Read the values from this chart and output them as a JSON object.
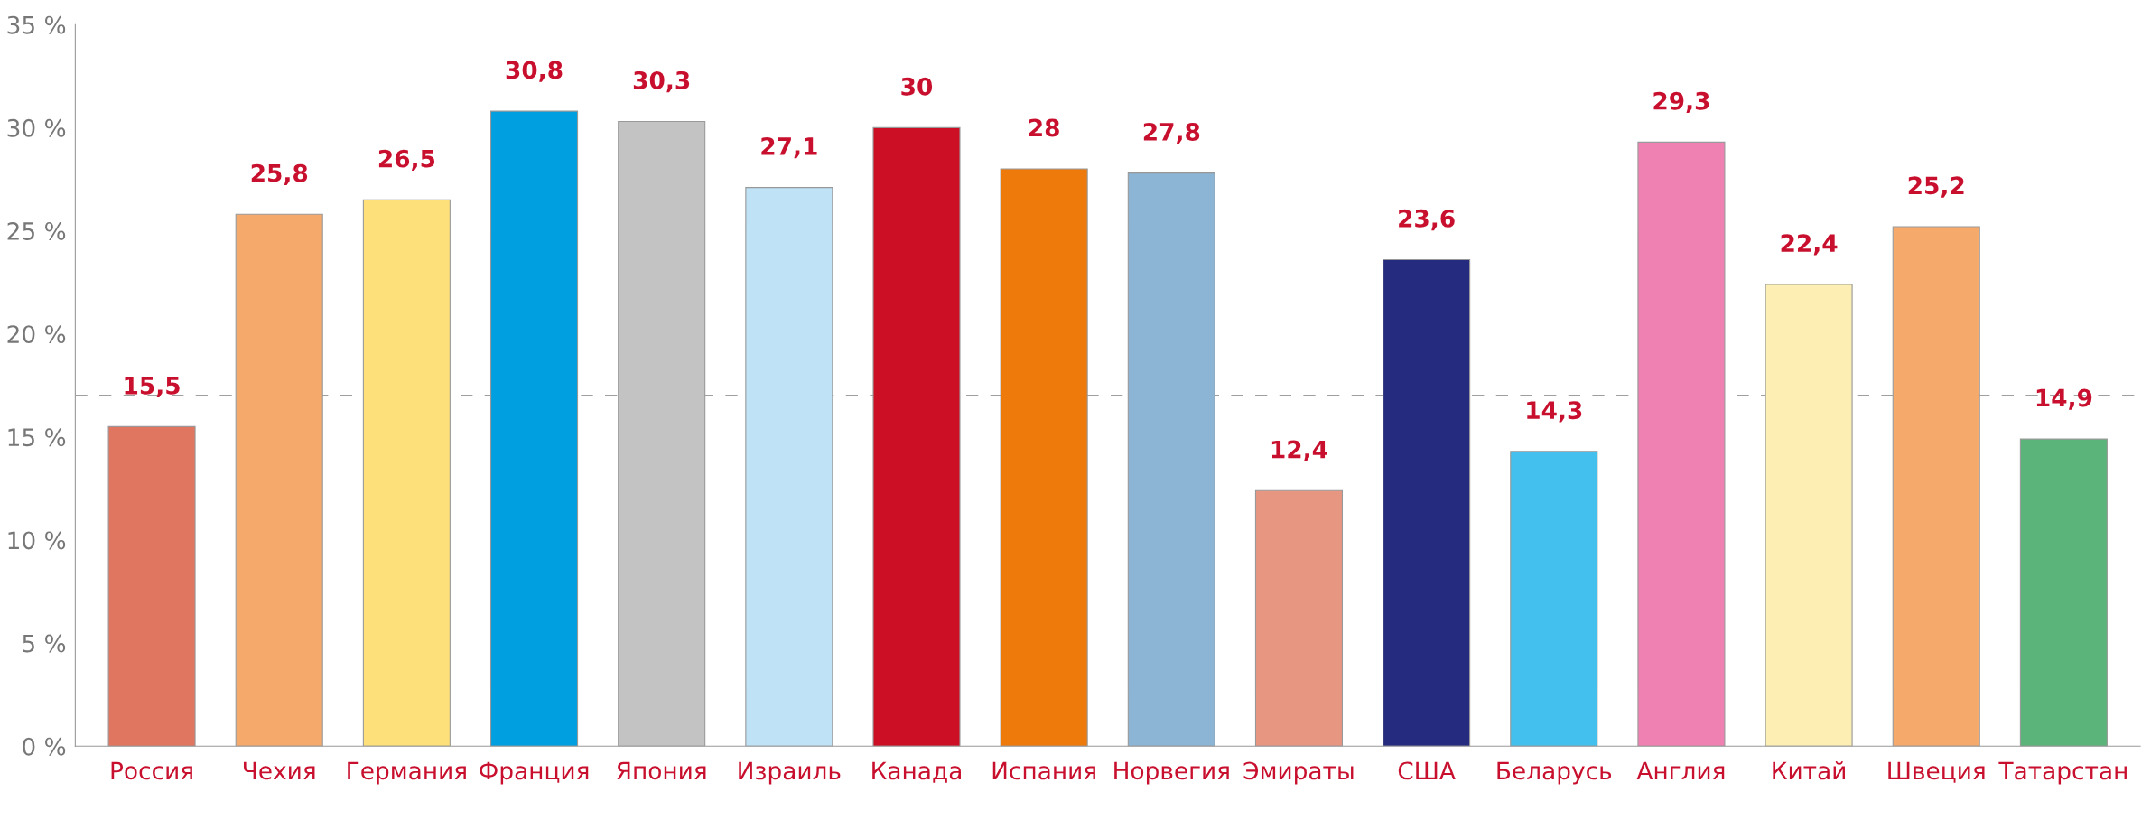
{
  "chart_data": {
    "type": "bar",
    "categories": [
      "Россия",
      "Чехия",
      "Германия",
      "Франция",
      "Япония",
      "Израиль",
      "Канада",
      "Испания",
      "Норвегия",
      "Эмираты",
      "США",
      "Беларусь",
      "Англия",
      "Китай",
      "Швеция",
      "Татарстан"
    ],
    "values": [
      15.5,
      25.8,
      26.5,
      30.8,
      30.3,
      27.1,
      30,
      28,
      27.8,
      12.4,
      23.6,
      14.3,
      29.3,
      22.4,
      25.2,
      14.9
    ],
    "value_labels": [
      "15,5",
      "25,8",
      "26,5",
      "30,8",
      "30,3",
      "27,1",
      "30",
      "28",
      "27,8",
      "12,4",
      "23,6",
      "14,3",
      "29,3",
      "22,4",
      "25,2",
      "14,9"
    ],
    "colors": [
      "#e07560",
      "#f5a96a",
      "#fde07a",
      "#009fe0",
      "#c3c3c3",
      "#bfe2f7",
      "#cc0f24",
      "#ee7a0c",
      "#8cb4d5",
      "#e79682",
      "#252b7f",
      "#43c0ed",
      "#ee80b2",
      "#fdeeb4",
      "#f5a96a",
      "#5bb57a"
    ],
    "ylim": [
      0,
      35
    ],
    "yticks": [
      {
        "value": 0,
        "label": "0 %"
      },
      {
        "value": 5,
        "label": "5 %"
      },
      {
        "value": 10,
        "label": "10 %"
      },
      {
        "value": 15,
        "label": "15 %"
      },
      {
        "value": 20,
        "label": "20 %"
      },
      {
        "value": 25,
        "label": "25 %"
      },
      {
        "value": 30,
        "label": "30 %"
      },
      {
        "value": 35,
        "label": "35 %"
      }
    ],
    "ref_lines": [
      {
        "axis": "y",
        "value": 17,
        "color": "#808080",
        "line_style": "dashed"
      }
    ],
    "grid": false,
    "legend": false
  }
}
